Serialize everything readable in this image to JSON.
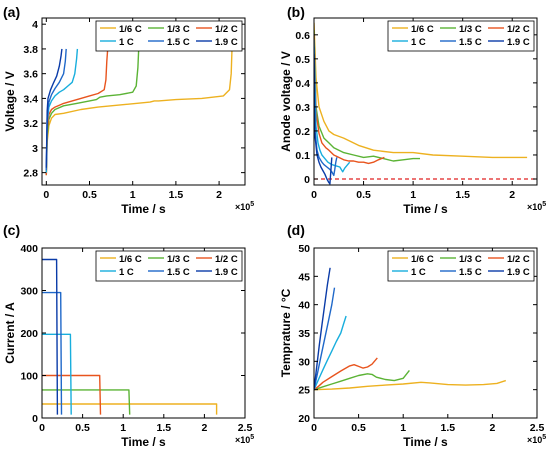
{
  "legend": {
    "entries": [
      {
        "name": "1/6 C",
        "color": "#EDB120"
      },
      {
        "name": "1/3 C",
        "color": "#5BB335"
      },
      {
        "name": "1/2 C",
        "color": "#E8541E"
      },
      {
        "name": "1 C",
        "color": "#18AEDD"
      },
      {
        "name": "1.5 C",
        "color": "#1F68C9"
      },
      {
        "name": "1.9 C",
        "color": "#0A3BA8"
      }
    ]
  },
  "chart_data": [
    {
      "panel": "(a)",
      "type": "line",
      "xlabel": "Time / s",
      "ylabel": "Voltage / V",
      "x_exponent": "×10^5",
      "xlim": [
        -0.05,
        2.3
      ],
      "ylim": [
        2.7,
        4.05
      ],
      "xticks": [
        "0",
        "0.5",
        "1",
        "1.5",
        "2"
      ],
      "xtick_values": [
        0,
        0.5,
        1,
        1.5,
        2
      ],
      "yticks": [
        "2.8",
        "3",
        "3.2",
        "3.4",
        "3.6",
        "3.8",
        "4"
      ],
      "ytick_values": [
        2.8,
        3.0,
        3.2,
        3.4,
        3.6,
        3.8,
        4.0
      ],
      "legend_placement": "top-right",
      "series": [
        {
          "name": "1/6 C",
          "x": [
            0,
            0.01,
            0.03,
            0.06,
            0.1,
            0.2,
            0.4,
            0.6,
            0.9,
            1.2,
            1.25,
            1.3,
            1.5,
            1.8,
            2.05,
            2.12,
            2.14,
            2.15
          ],
          "y": [
            2.78,
            3.05,
            3.18,
            3.24,
            3.27,
            3.28,
            3.31,
            3.33,
            3.35,
            3.37,
            3.38,
            3.38,
            3.39,
            3.4,
            3.42,
            3.47,
            3.6,
            3.8
          ]
        },
        {
          "name": "1/3 C",
          "x": [
            0,
            0.01,
            0.03,
            0.06,
            0.1,
            0.2,
            0.35,
            0.5,
            0.58,
            0.62,
            0.7,
            0.85,
            1.0,
            1.04,
            1.06,
            1.07
          ],
          "y": [
            2.78,
            3.1,
            3.23,
            3.28,
            3.31,
            3.34,
            3.36,
            3.38,
            3.39,
            3.41,
            3.42,
            3.43,
            3.45,
            3.5,
            3.65,
            3.8
          ]
        },
        {
          "name": "1/2 C",
          "x": [
            0,
            0.01,
            0.03,
            0.06,
            0.1,
            0.2,
            0.3,
            0.4,
            0.5,
            0.6,
            0.67,
            0.69,
            0.7,
            0.71
          ],
          "y": [
            2.78,
            3.15,
            3.27,
            3.31,
            3.33,
            3.36,
            3.38,
            3.4,
            3.42,
            3.44,
            3.47,
            3.55,
            3.7,
            3.8
          ]
        },
        {
          "name": "1 C",
          "x": [
            0,
            0.01,
            0.03,
            0.06,
            0.1,
            0.15,
            0.2,
            0.25,
            0.3,
            0.33,
            0.35,
            0.36
          ],
          "y": [
            2.8,
            3.2,
            3.33,
            3.38,
            3.42,
            3.45,
            3.47,
            3.5,
            3.53,
            3.6,
            3.72,
            3.8
          ]
        },
        {
          "name": "1.5 C",
          "x": [
            0,
            0.01,
            0.03,
            0.06,
            0.1,
            0.15,
            0.2,
            0.22,
            0.23
          ],
          "y": [
            2.82,
            3.25,
            3.37,
            3.43,
            3.48,
            3.53,
            3.6,
            3.7,
            3.8
          ]
        },
        {
          "name": "1.9 C",
          "x": [
            0,
            0.01,
            0.02,
            0.05,
            0.08,
            0.12,
            0.15,
            0.17,
            0.18
          ],
          "y": [
            2.84,
            3.3,
            3.4,
            3.47,
            3.52,
            3.58,
            3.66,
            3.74,
            3.8
          ]
        }
      ]
    },
    {
      "panel": "(b)",
      "type": "line",
      "xlabel": "Time / s",
      "ylabel": "Anode voltage / V",
      "x_exponent": "×10^5",
      "xlim": [
        0,
        2.25
      ],
      "ylim": [
        -0.025,
        0.67
      ],
      "xticks": [
        "0",
        "0.5",
        "1",
        "1.5",
        "2"
      ],
      "xtick_values": [
        0,
        0.5,
        1,
        1.5,
        2
      ],
      "yticks": [
        "0",
        "0.1",
        "0.2",
        "0.3",
        "0.4",
        "0.5",
        "0.6"
      ],
      "ytick_values": [
        0,
        0.1,
        0.2,
        0.3,
        0.4,
        0.5,
        0.6
      ],
      "reference_line": {
        "y": 0,
        "style": "dashed",
        "color": "#E02020"
      },
      "legend_placement": "top-right",
      "series": [
        {
          "name": "1/6 C",
          "x": [
            0,
            0.02,
            0.05,
            0.1,
            0.15,
            0.2,
            0.3,
            0.45,
            0.6,
            0.8,
            1.0,
            1.2,
            1.5,
            1.8,
            2.0,
            2.15
          ],
          "y": [
            0.65,
            0.42,
            0.3,
            0.24,
            0.2,
            0.185,
            0.17,
            0.14,
            0.12,
            0.11,
            0.11,
            0.1,
            0.095,
            0.09,
            0.09,
            0.09
          ]
        },
        {
          "name": "1/3 C",
          "x": [
            0,
            0.02,
            0.05,
            0.1,
            0.15,
            0.2,
            0.3,
            0.4,
            0.5,
            0.6,
            0.7,
            0.8,
            0.9,
            1.0,
            1.07
          ],
          "y": [
            0.62,
            0.3,
            0.22,
            0.17,
            0.15,
            0.13,
            0.11,
            0.1,
            0.09,
            0.095,
            0.085,
            0.075,
            0.08,
            0.085,
            0.085
          ]
        },
        {
          "name": "1/2 C",
          "x": [
            0,
            0.02,
            0.05,
            0.08,
            0.12,
            0.15,
            0.2,
            0.25,
            0.3,
            0.35,
            0.4,
            0.45,
            0.5,
            0.55,
            0.6,
            0.65,
            0.71
          ],
          "y": [
            0.6,
            0.28,
            0.19,
            0.15,
            0.13,
            0.12,
            0.1,
            0.09,
            0.08,
            0.075,
            0.075,
            0.07,
            0.07,
            0.065,
            0.07,
            0.08,
            0.09
          ]
        },
        {
          "name": "1 C",
          "x": [
            0,
            0.02,
            0.04,
            0.06,
            0.08,
            0.1,
            0.14,
            0.18,
            0.22,
            0.26,
            0.29,
            0.31,
            0.34,
            0.36
          ],
          "y": [
            0.58,
            0.22,
            0.15,
            0.12,
            0.1,
            0.09,
            0.07,
            0.06,
            0.055,
            0.05,
            0.03,
            0.045,
            0.06,
            0.07
          ]
        },
        {
          "name": "1.5 C",
          "x": [
            0,
            0.01,
            0.03,
            0.05,
            0.08,
            0.1,
            0.13,
            0.16,
            0.18,
            0.2,
            0.21,
            0.22,
            0.23
          ],
          "y": [
            0.55,
            0.2,
            0.12,
            0.09,
            0.07,
            0.06,
            0.05,
            0.04,
            0.03,
            0.015,
            0.04,
            0.07,
            0.09
          ]
        },
        {
          "name": "1.9 C",
          "x": [
            0,
            0.01,
            0.03,
            0.05,
            0.07,
            0.09,
            0.11,
            0.13,
            0.15,
            0.16,
            0.17,
            0.18
          ],
          "y": [
            0.52,
            0.18,
            0.1,
            0.07,
            0.05,
            0.035,
            0.02,
            0.0,
            -0.015,
            -0.02,
            0.03,
            0.09
          ]
        }
      ]
    },
    {
      "panel": "(c)",
      "type": "line",
      "xlabel": "Time / s",
      "ylabel": "Current / A",
      "x_exponent": "×10^5",
      "xlim": [
        0,
        2.5
      ],
      "ylim": [
        0,
        400
      ],
      "xticks": [
        "0",
        "0.5",
        "1",
        "1.5",
        "2",
        "2.5"
      ],
      "xtick_values": [
        0,
        0.5,
        1,
        1.5,
        2,
        2.5
      ],
      "yticks": [
        "0",
        "100",
        "200",
        "300",
        "400"
      ],
      "ytick_values": [
        0,
        100,
        200,
        300,
        400
      ],
      "legend_placement": "top-right",
      "series": [
        {
          "name": "1/6 C",
          "x": [
            0,
            2.15,
            2.15
          ],
          "y": [
            33,
            33,
            8
          ]
        },
        {
          "name": "1/3 C",
          "x": [
            0,
            1.07,
            1.08
          ],
          "y": [
            66,
            66,
            8
          ]
        },
        {
          "name": "1/2 C",
          "x": [
            0,
            0.71,
            0.72
          ],
          "y": [
            100,
            100,
            8
          ]
        },
        {
          "name": "1 C",
          "x": [
            0,
            0.35,
            0.36
          ],
          "y": [
            197,
            197,
            8
          ]
        },
        {
          "name": "1.5 C",
          "x": [
            0,
            0.23,
            0.24
          ],
          "y": [
            295,
            295,
            8
          ]
        },
        {
          "name": "1.9 C",
          "x": [
            0,
            0.18,
            0.19
          ],
          "y": [
            373,
            373,
            8
          ]
        }
      ]
    },
    {
      "panel": "(d)",
      "type": "line",
      "xlabel": "Time / s",
      "ylabel": "Temprature / °C",
      "x_exponent": "×10^5",
      "xlim": [
        0,
        2.5
      ],
      "ylim": [
        20,
        50
      ],
      "xticks": [
        "0",
        "0.5",
        "1",
        "1.5",
        "2",
        "2.5"
      ],
      "xtick_values": [
        0,
        0.5,
        1,
        1.5,
        2,
        2.5
      ],
      "yticks": [
        "20",
        "25",
        "30",
        "35",
        "40",
        "45",
        "50"
      ],
      "ytick_values": [
        20,
        25,
        30,
        35,
        40,
        45,
        50
      ],
      "legend_placement": "top-right",
      "series": [
        {
          "name": "1/6 C",
          "x": [
            0,
            0.2,
            0.4,
            0.6,
            0.8,
            1.0,
            1.2,
            1.3,
            1.5,
            1.7,
            1.9,
            2.05,
            2.15
          ],
          "y": [
            25,
            25.1,
            25.3,
            25.6,
            25.8,
            26.0,
            26.3,
            26.2,
            25.9,
            25.8,
            25.9,
            26.1,
            26.6
          ]
        },
        {
          "name": "1/3 C",
          "x": [
            0,
            0.1,
            0.2,
            0.3,
            0.4,
            0.5,
            0.6,
            0.65,
            0.7,
            0.8,
            0.9,
            1.0,
            1.07
          ],
          "y": [
            25,
            25.5,
            26.0,
            26.5,
            27.0,
            27.5,
            27.8,
            27.7,
            27.2,
            26.8,
            26.6,
            27.0,
            28.4
          ]
        },
        {
          "name": "1/2 C",
          "x": [
            0,
            0.05,
            0.1,
            0.2,
            0.3,
            0.4,
            0.45,
            0.5,
            0.55,
            0.6,
            0.65,
            0.71
          ],
          "y": [
            25,
            25.6,
            26.3,
            27.3,
            28.3,
            29.2,
            29.4,
            29.1,
            28.8,
            29.0,
            29.5,
            30.6
          ]
        },
        {
          "name": "1 C",
          "x": [
            0,
            0.05,
            0.1,
            0.15,
            0.2,
            0.25,
            0.3,
            0.33,
            0.36
          ],
          "y": [
            25,
            26.8,
            28.5,
            30.2,
            31.8,
            33.5,
            35.0,
            36.5,
            38.0
          ]
        },
        {
          "name": "1.5 C",
          "x": [
            0,
            0.04,
            0.08,
            0.12,
            0.16,
            0.2,
            0.23
          ],
          "y": [
            25,
            28.0,
            31.0,
            34.0,
            37.0,
            40.0,
            43.0
          ]
        },
        {
          "name": "1.9 C",
          "x": [
            0,
            0.03,
            0.06,
            0.09,
            0.12,
            0.15,
            0.18
          ],
          "y": [
            25,
            29.0,
            33.0,
            36.5,
            40.0,
            43.5,
            46.5
          ]
        }
      ]
    }
  ]
}
